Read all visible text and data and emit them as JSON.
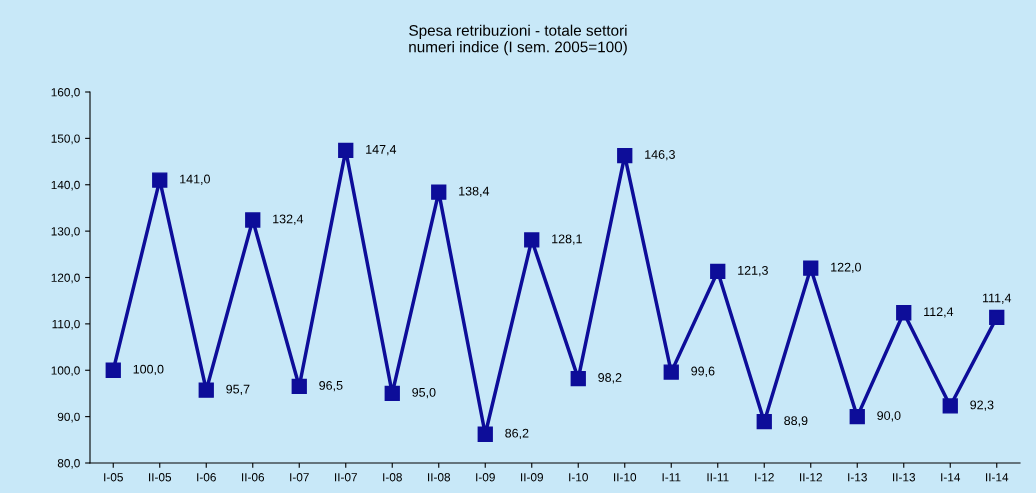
{
  "chart_data": {
    "type": "line",
    "title": "Spesa retribuzioni - totale settori",
    "subtitle": "numeri indice (I sem. 2005=100)",
    "categories": [
      "I-05",
      "II-05",
      "I-06",
      "II-06",
      "I-07",
      "II-07",
      "I-08",
      "II-08",
      "I-09",
      "II-09",
      "I-10",
      "II-10",
      "I-11",
      "II-11",
      "I-12",
      "II-12",
      "I-13",
      "II-13",
      "I-14",
      "II-14"
    ],
    "series": [
      {
        "color": "#0d0d99",
        "values": [
          100.0,
          141.0,
          95.7,
          132.4,
          96.5,
          147.4,
          95.0,
          138.4,
          86.2,
          128.1,
          98.2,
          146.3,
          99.6,
          121.3,
          88.9,
          122.0,
          90.0,
          112.4,
          92.3,
          111.4
        ],
        "value_labels": [
          "100,0",
          "141,0",
          "95,7",
          "132,4",
          "96,5",
          "147,4",
          "95,0",
          "138,4",
          "86,2",
          "128,1",
          "98,2",
          "146,3",
          "99,6",
          "121,3",
          "88,9",
          "122,0",
          "90,0",
          "112,4",
          "92,3",
          "111,4"
        ]
      }
    ],
    "ylim": [
      80,
      160
    ],
    "yticks": [
      {
        "value": 80,
        "label": "80,0"
      },
      {
        "value": 90,
        "label": "90,0"
      },
      {
        "value": 100,
        "label": "100,0"
      },
      {
        "value": 110,
        "label": "110,0"
      },
      {
        "value": 120,
        "label": "120,0"
      },
      {
        "value": 130,
        "label": "130,0"
      },
      {
        "value": 140,
        "label": "140,0"
      },
      {
        "value": 150,
        "label": "150,0"
      },
      {
        "value": 160,
        "label": "160,0"
      }
    ],
    "marker": "square",
    "line_style": "solid",
    "grid": false,
    "legend": false
  }
}
